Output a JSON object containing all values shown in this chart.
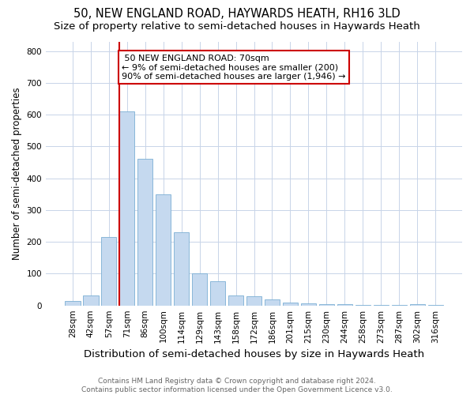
{
  "title": "50, NEW ENGLAND ROAD, HAYWARDS HEATH, RH16 3LD",
  "subtitle": "Size of property relative to semi-detached houses in Haywards Heath",
  "xlabel": "Distribution of semi-detached houses by size in Haywards Heath",
  "ylabel": "Number of semi-detached properties",
  "footnote": "Contains HM Land Registry data © Crown copyright and database right 2024.\nContains public sector information licensed under the Open Government Licence v3.0.",
  "categories": [
    "28sqm",
    "42sqm",
    "57sqm",
    "71sqm",
    "86sqm",
    "100sqm",
    "114sqm",
    "129sqm",
    "143sqm",
    "158sqm",
    "172sqm",
    "186sqm",
    "201sqm",
    "215sqm",
    "230sqm",
    "244sqm",
    "258sqm",
    "273sqm",
    "287sqm",
    "302sqm",
    "316sqm"
  ],
  "values": [
    14,
    32,
    215,
    610,
    460,
    350,
    230,
    100,
    75,
    32,
    28,
    18,
    10,
    7,
    4,
    3,
    2,
    2,
    1,
    5,
    2
  ],
  "bar_color": "#c5d9ef",
  "bar_edge_color": "#7bafd4",
  "property_line_index": 3,
  "property_label": "50 NEW ENGLAND ROAD: 70sqm",
  "pct_smaller": 9,
  "n_smaller": 200,
  "pct_larger": 90,
  "n_larger": 1946,
  "annotation_box_color": "#ffffff",
  "annotation_box_edge_color": "#cc0000",
  "line_color": "#cc0000",
  "ylim": [
    0,
    830
  ],
  "yticks": [
    0,
    100,
    200,
    300,
    400,
    500,
    600,
    700,
    800
  ],
  "background_color": "#ffffff",
  "grid_color": "#c8d4e8",
  "title_fontsize": 10.5,
  "subtitle_fontsize": 9.5,
  "xlabel_fontsize": 9.5,
  "ylabel_fontsize": 8.5,
  "tick_fontsize": 7.5,
  "annotation_fontsize": 8,
  "footnote_fontsize": 6.5
}
